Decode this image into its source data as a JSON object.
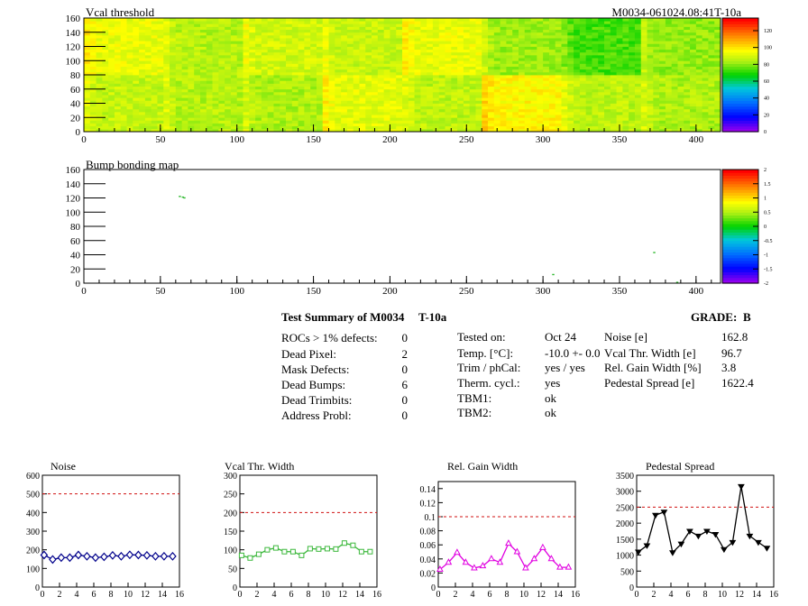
{
  "header": {
    "map_title": "Vcal threshold",
    "module_id": "M0034-061024.08:41T-10a",
    "bump_title": "Bump bonding map"
  },
  "summary": {
    "title": "Test Summary of M0034",
    "test": "T-10a",
    "grade_label": "GRADE:",
    "grade": "B",
    "left": [
      {
        "label": "ROCs > 1% defects:",
        "value": "0"
      },
      {
        "label": "Dead Pixel:",
        "value": "2"
      },
      {
        "label": "Mask Defects:",
        "value": "0"
      },
      {
        "label": "Dead Bumps:",
        "value": "6"
      },
      {
        "label": "Dead Trimbits:",
        "value": "0"
      },
      {
        "label": "Address Probl:",
        "value": "0"
      }
    ],
    "middle": [
      {
        "label": "Tested on:",
        "value": "Oct 24"
      },
      {
        "label": "Temp. [°C]:",
        "value": "-10.0 +- 0.0"
      },
      {
        "label": "Trim / phCal:",
        "value": "yes / yes"
      },
      {
        "label": "Therm. cycl.:",
        "value": "yes"
      },
      {
        "label": "TBM1:",
        "value": "ok"
      },
      {
        "label": "TBM2:",
        "value": "ok"
      }
    ],
    "right": [
      {
        "label": "Noise [e]",
        "value": "162.8"
      },
      {
        "label": "Vcal Thr. Width [e]",
        "value": "96.7"
      },
      {
        "label": "Rel. Gain Width [%]",
        "value": "3.8"
      },
      {
        "label": "Pedestal Spread [e]",
        "value": "1622.4"
      }
    ]
  },
  "colors": {
    "noise": "#00008b",
    "vcal": "#3cb83c",
    "gain": "#e000e0",
    "pedestal": "#000000",
    "limit": "#d01010"
  },
  "chart_data": [
    {
      "type": "heatmap",
      "title": "Vcal threshold",
      "xlim": [
        0,
        416
      ],
      "ylim": [
        0,
        160
      ],
      "xticks": [
        "0",
        "50",
        "100",
        "150",
        "200",
        "250",
        "300",
        "350",
        "400"
      ],
      "yticks": [
        "0",
        "20",
        "40",
        "60",
        "80",
        "100",
        "120",
        "140",
        "160"
      ],
      "colorbar_ticks": [
        "0",
        "20",
        "40",
        "60",
        "80",
        "100",
        "120"
      ],
      "colorbar_range": [
        0,
        135
      ],
      "roc_mean_values": [
        [
          88,
          86,
          85,
          93,
          87,
          98,
          87,
          85
        ],
        [
          94,
          86,
          90,
          88,
          94,
          83,
          74,
          82
        ]
      ]
    },
    {
      "type": "heatmap",
      "title": "Bump bonding map",
      "xlim": [
        0,
        416
      ],
      "ylim": [
        0,
        160
      ],
      "xticks": [
        "0",
        "50",
        "100",
        "150",
        "200",
        "250",
        "300",
        "350",
        "400"
      ],
      "yticks": [
        "0",
        "20",
        "40",
        "60",
        "80",
        "100",
        "120",
        "140",
        "160"
      ],
      "colorbar_ticks": [
        "2",
        "1.5",
        "1",
        "0.5",
        "0",
        "-0.5",
        "-1",
        "-1.5",
        "-2"
      ],
      "colorbar_range": [
        -2,
        2
      ],
      "points": [
        {
          "x": 62,
          "y": 123
        },
        {
          "x": 64,
          "y": 122
        },
        {
          "x": 65,
          "y": 121
        },
        {
          "x": 306,
          "y": 13
        },
        {
          "x": 372,
          "y": 44
        },
        {
          "x": 387,
          "y": 2
        }
      ]
    },
    {
      "type": "line",
      "title": "Noise",
      "x": [
        0,
        1,
        2,
        3,
        4,
        5,
        6,
        7,
        8,
        9,
        10,
        11,
        12,
        13,
        14,
        15
      ],
      "values": [
        172,
        148,
        158,
        158,
        172,
        165,
        158,
        162,
        170,
        165,
        173,
        172,
        170,
        165,
        165,
        165
      ],
      "limit": 500,
      "ylim": [
        0,
        600
      ],
      "xlim": [
        0,
        16
      ],
      "yticks": [
        "0",
        "100",
        "200",
        "300",
        "400",
        "500",
        "600"
      ],
      "xticks": [
        "0",
        "2",
        "4",
        "6",
        "8",
        "10",
        "12",
        "14",
        "16"
      ]
    },
    {
      "type": "line",
      "title": "Vcal Thr. Width",
      "x": [
        0,
        1,
        2,
        3,
        4,
        5,
        6,
        7,
        8,
        9,
        10,
        11,
        12,
        13,
        14,
        15
      ],
      "values": [
        85,
        78,
        88,
        100,
        105,
        95,
        95,
        85,
        103,
        102,
        103,
        102,
        118,
        112,
        95,
        95
      ],
      "limit": 200,
      "ylim": [
        0,
        300
      ],
      "xlim": [
        0,
        16
      ],
      "yticks": [
        "0",
        "50",
        "100",
        "150",
        "200",
        "250",
        "300"
      ],
      "xticks": [
        "0",
        "2",
        "4",
        "6",
        "8",
        "10",
        "12",
        "14",
        "16"
      ]
    },
    {
      "type": "line",
      "title": "Rel. Gain Width",
      "x": [
        0,
        1,
        2,
        3,
        4,
        5,
        6,
        7,
        8,
        9,
        10,
        11,
        12,
        13,
        14,
        15
      ],
      "values": [
        0.025,
        0.035,
        0.049,
        0.035,
        0.027,
        0.03,
        0.04,
        0.035,
        0.062,
        0.05,
        0.027,
        0.04,
        0.056,
        0.04,
        0.028,
        0.028
      ],
      "limit": 0.1,
      "ylim": [
        0,
        0.15
      ],
      "xlim": [
        0,
        16
      ],
      "yticks": [
        "0",
        "0.02",
        "0.04",
        "0.06",
        "0.08",
        "0.1",
        "0.12",
        "0.14"
      ],
      "xticks": [
        "0",
        "2",
        "4",
        "6",
        "8",
        "10",
        "12",
        "14",
        "16"
      ]
    },
    {
      "type": "line",
      "title": "Pedestal Spread",
      "x": [
        0,
        1,
        2,
        3,
        4,
        5,
        6,
        7,
        8,
        9,
        10,
        11,
        12,
        13,
        14,
        15
      ],
      "values": [
        1100,
        1300,
        2250,
        2350,
        1080,
        1350,
        1750,
        1600,
        1750,
        1650,
        1180,
        1400,
        3150,
        1600,
        1400,
        1220
      ],
      "limit": 2500,
      "ylim": [
        0,
        3500
      ],
      "xlim": [
        0,
        16
      ],
      "yticks": [
        "0",
        "500",
        "1000",
        "1500",
        "2000",
        "2500",
        "3000",
        "3500"
      ],
      "xticks": [
        "0",
        "2",
        "4",
        "6",
        "8",
        "10",
        "12",
        "14",
        "16"
      ]
    }
  ]
}
